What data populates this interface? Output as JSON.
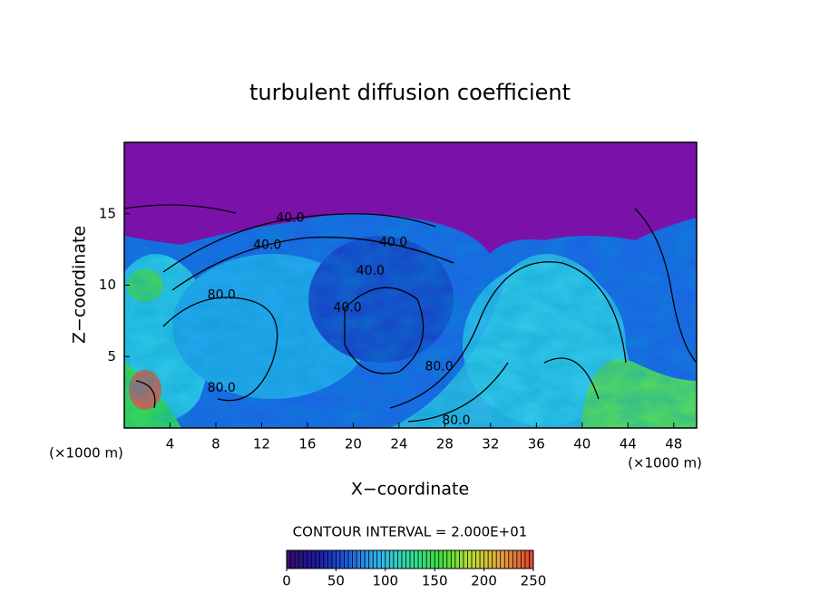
{
  "chart_data": {
    "type": "contour",
    "title": "turbulent diffusion coefficient",
    "x_label": "X−coordinate",
    "y_label": "Z−coordinate",
    "x_unit_label": "(×1000 m)",
    "x_unit_label_right": "(×1000 m)",
    "xlim": [
      0,
      50
    ],
    "ylim": [
      0,
      20
    ],
    "xticks": [
      4,
      8,
      12,
      16,
      20,
      24,
      28,
      32,
      36,
      40,
      44,
      48
    ],
    "yticks": [
      5,
      10,
      15
    ],
    "contour_interval_text": "CONTOUR INTERVAL = 2.000E+01",
    "contour_labels": [
      {
        "text": "40.0",
        "x": 14.5,
        "y": 14.7
      },
      {
        "text": "40.0",
        "x": 12.5,
        "y": 12.8
      },
      {
        "text": "40.0",
        "x": 23.5,
        "y": 13.0
      },
      {
        "text": "40.0",
        "x": 21.5,
        "y": 11.0
      },
      {
        "text": "40.0",
        "x": 19.5,
        "y": 8.4
      },
      {
        "text": "80.0",
        "x": 8.5,
        "y": 9.3
      },
      {
        "text": "80.0",
        "x": 8.5,
        "y": 2.8
      },
      {
        "text": "80.0",
        "x": 29.0,
        "y": 0.5
      },
      {
        "text": "80.0",
        "x": 27.5,
        "y": 4.3
      }
    ],
    "colorbar": {
      "lim": [
        0,
        250
      ],
      "ticks": [
        0,
        50,
        100,
        150,
        200,
        250
      ],
      "colors": [
        "#3a0a6e",
        "#1a1aa8",
        "#1f60e0",
        "#2fb8f0",
        "#30e0a0",
        "#40e040",
        "#c0e030",
        "#e8a040",
        "#e04030"
      ]
    }
  }
}
